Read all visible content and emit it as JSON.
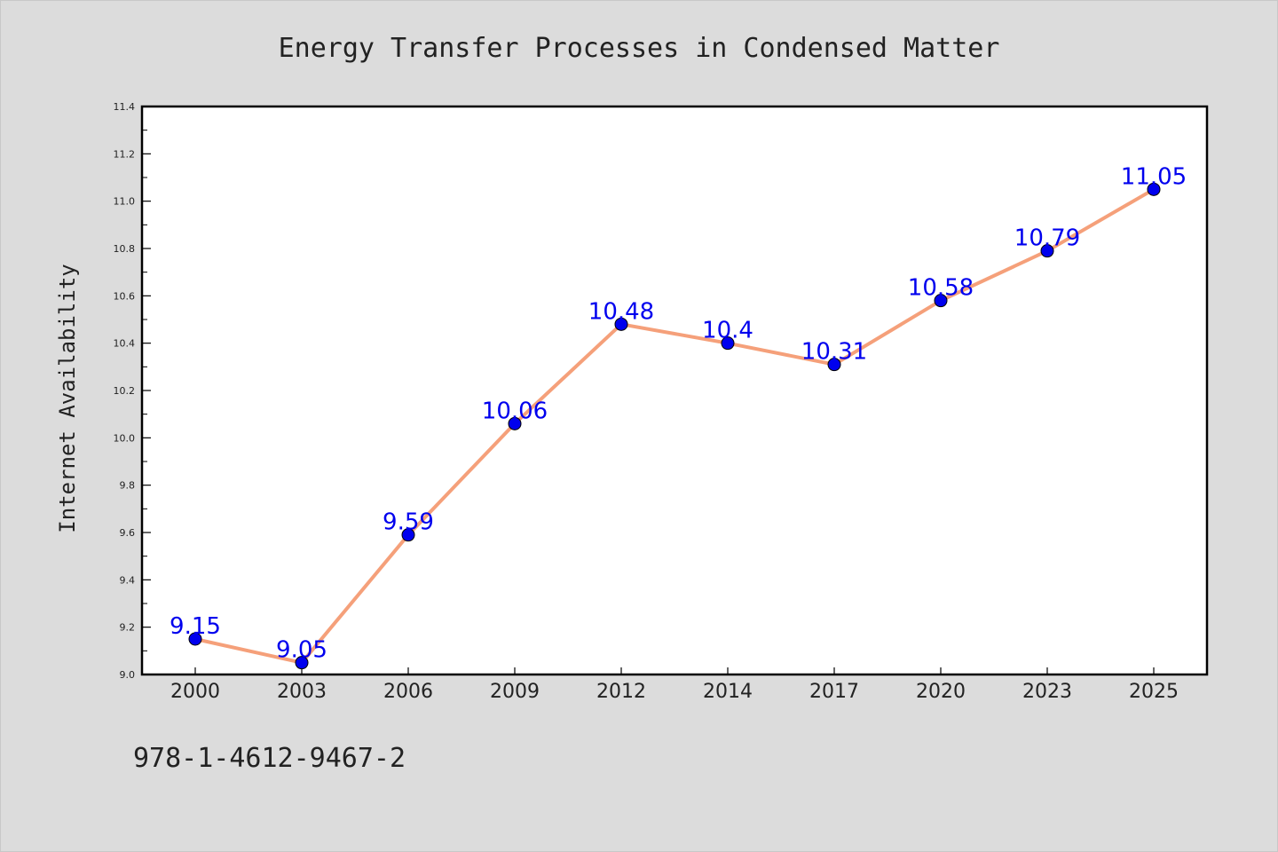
{
  "chart_data": {
    "type": "line",
    "title": "Energy Transfer Processes in Condensed Matter",
    "xlabel": "",
    "ylabel": "Internet Availability",
    "categories": [
      "2000",
      "2003",
      "2006",
      "2009",
      "2012",
      "2014",
      "2017",
      "2020",
      "2023",
      "2025"
    ],
    "series": [
      {
        "values": [
          9.15,
          9.05,
          9.59,
          10.06,
          10.48,
          10.4,
          10.31,
          10.58,
          10.79,
          11.05
        ],
        "data_labels": [
          "9.15",
          "9.05",
          "9.59",
          "10.06",
          "10.48",
          "10.4",
          "10.31",
          "10.58",
          "10.79",
          "11.05"
        ],
        "line_color": "#f5a07a",
        "marker_color": "#0000ee",
        "label_color": "#0000ee"
      }
    ],
    "ylim": [
      9.0,
      11.4
    ],
    "yticks": [
      "9.0",
      "9.2",
      "9.4",
      "9.6",
      "9.8",
      "10.0",
      "10.2",
      "10.4",
      "10.6",
      "10.8",
      "11.0",
      "11.2",
      "11.4"
    ],
    "grid": false,
    "legend": "none"
  },
  "footer": {
    "code": "978-1-4612-9467-2"
  },
  "colors": {
    "background": "#dcdcdc",
    "plot_background": "#ffffff",
    "axis": "#000000",
    "text": "#222222"
  }
}
